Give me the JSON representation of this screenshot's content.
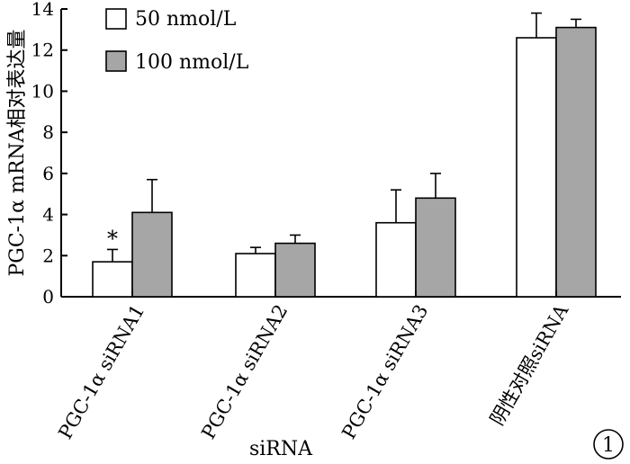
{
  "chart_data": {
    "type": "bar",
    "categories": [
      "PGC-1α siRNA1",
      "PGC-1α siRNA2",
      "PGC-1α siRNA3",
      "阴性对照siRNA"
    ],
    "series": [
      {
        "name": "50 nmol/L",
        "values": [
          1.7,
          2.1,
          3.6,
          12.6
        ],
        "errors": [
          0.6,
          0.3,
          1.6,
          1.2
        ],
        "color": "#ffffff"
      },
      {
        "name": "100 nmol/L",
        "values": [
          4.1,
          2.6,
          4.8,
          13.1
        ],
        "errors": [
          1.6,
          0.4,
          1.2,
          0.4
        ],
        "color": "#a6a6a6"
      }
    ],
    "ylabel": "PGC-1α mRNA相对表达量",
    "xlabel": "siRNA",
    "ylim": [
      0,
      14
    ],
    "yticks": [
      0,
      2,
      4,
      6,
      8,
      10,
      12,
      14
    ],
    "annotations": [
      {
        "text": "*",
        "category_index": 0,
        "series_index": 0
      }
    ],
    "panel_label": "1",
    "legend_position": "top-left",
    "grid": false
  }
}
